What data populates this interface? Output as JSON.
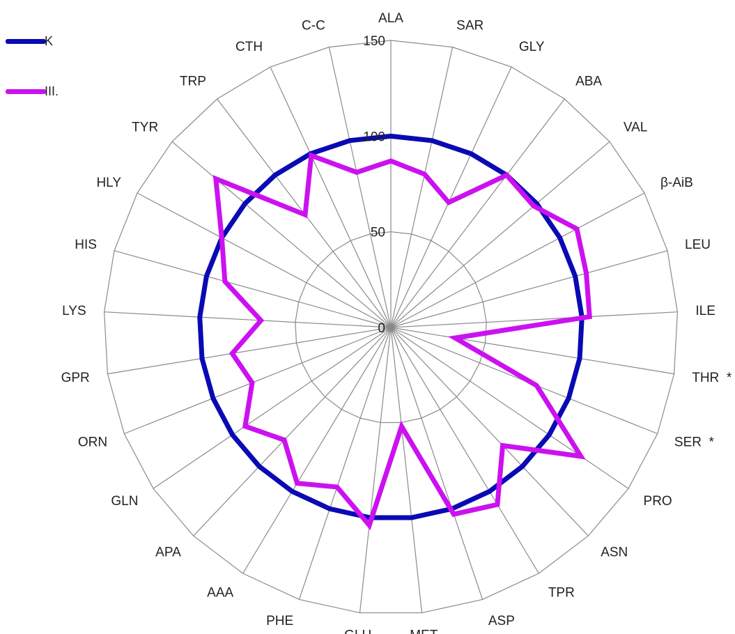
{
  "chart_data": {
    "type": "radar",
    "title": "",
    "categories": [
      "ALA",
      "SAR",
      "GLY",
      "ABA",
      "VAL",
      "β-AiB",
      "LEU",
      "ILE",
      "THR  *",
      "SER  *",
      "PRO",
      "ASN",
      "TPR",
      "ASP",
      "MET",
      "GLU",
      "PHE",
      "AAA",
      "APA",
      "GLN",
      "ORN",
      "GPR",
      "LYS",
      "HIS",
      "HLY",
      "TYR",
      "TRP",
      "CTH",
      "C-C"
    ],
    "radial_ticks": [
      0,
      50,
      100,
      150
    ],
    "rmax": 150,
    "grid": true,
    "legend_position": "top-left",
    "series": [
      {
        "name": "K",
        "color": "#0a0ab4",
        "values": [
          100,
          100,
          100,
          100,
          100,
          100,
          100,
          100,
          100,
          100,
          100,
          100,
          100,
          100,
          100,
          100,
          100,
          100,
          100,
          100,
          100,
          100,
          100,
          100,
          100,
          100,
          100,
          100,
          100
        ]
      },
      {
        "name": "III.",
        "color": "#cc11f0",
        "values": [
          87,
          82,
          72,
          100,
          98,
          110,
          106,
          104,
          34,
          82,
          120,
          85,
          108,
          103,
          52,
          104,
          88,
          95,
          81,
          92,
          78,
          84,
          68,
          90,
          100,
          120,
          74,
          99,
          83
        ]
      }
    ]
  }
}
